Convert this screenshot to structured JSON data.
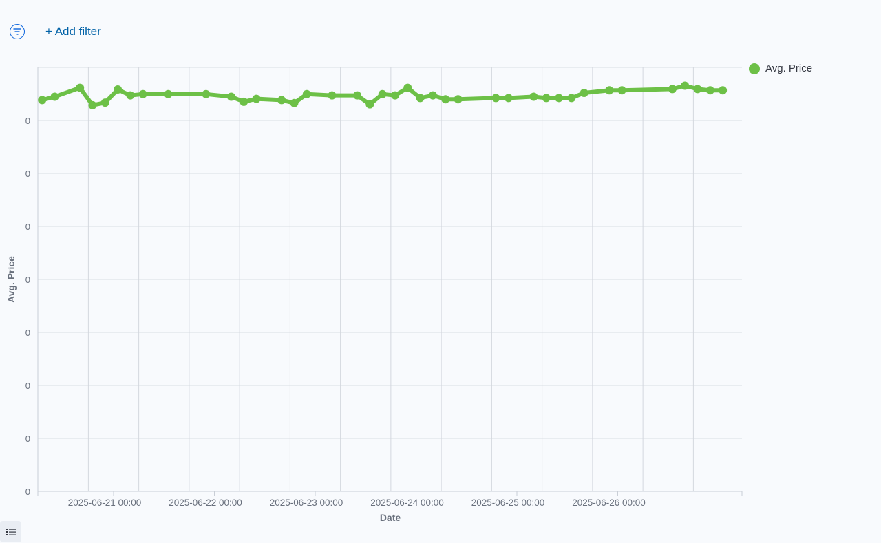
{
  "filter_bar": {
    "add_filter_label": "+ Add filter",
    "filter_icon": "filter-icon"
  },
  "legend_toggle_icon": "list-icon",
  "colors": {
    "series": "#6dc047",
    "grid": "#d9dde3",
    "accent": "#0061a6"
  },
  "chart_data": {
    "type": "line",
    "xlabel": "Date",
    "ylabel": "Avg. Price",
    "x_ticks": [
      "2025-06-21 00:00",
      "2025-06-22 00:00",
      "2025-06-23 00:00",
      "2025-06-24 00:00",
      "2025-06-25 00:00",
      "2025-06-26 00:00"
    ],
    "y_tick_labels": [
      "0",
      "0",
      "0",
      "0",
      "0",
      "0",
      "0",
      "0"
    ],
    "legend_position": "top-right",
    "grid": true,
    "series": [
      {
        "name": "Avg. Price",
        "color": "#6dc047",
        "points": [
          [
            "2025-06-20 07:00",
            0.2073
          ],
          [
            "2025-06-20 10:00",
            0.2081
          ],
          [
            "2025-06-20 16:00",
            0.2102
          ],
          [
            "2025-06-20 19:00",
            0.2061
          ],
          [
            "2025-06-20 22:00",
            0.2067
          ],
          [
            "2025-06-21 01:00",
            0.2098
          ],
          [
            "2025-06-21 04:00",
            0.2084
          ],
          [
            "2025-06-21 07:00",
            0.2087
          ],
          [
            "2025-06-21 13:00",
            0.2087
          ],
          [
            "2025-06-21 22:00",
            0.2087
          ],
          [
            "2025-06-22 04:00",
            0.2081
          ],
          [
            "2025-06-22 07:00",
            0.2069
          ],
          [
            "2025-06-22 10:00",
            0.2076
          ],
          [
            "2025-06-22 16:00",
            0.2073
          ],
          [
            "2025-06-22 19:00",
            0.2066
          ],
          [
            "2025-06-22 22:00",
            0.2087
          ],
          [
            "2025-06-23 04:00",
            0.2084
          ],
          [
            "2025-06-23 10:00",
            0.2084
          ],
          [
            "2025-06-23 13:00",
            0.2063
          ],
          [
            "2025-06-23 16:00",
            0.2087
          ],
          [
            "2025-06-23 19:00",
            0.2084
          ],
          [
            "2025-06-23 22:00",
            0.2102
          ],
          [
            "2025-06-24 01:00",
            0.2078
          ],
          [
            "2025-06-24 04:00",
            0.2084
          ],
          [
            "2025-06-24 07:00",
            0.2075
          ],
          [
            "2025-06-24 10:00",
            0.2075
          ],
          [
            "2025-06-24 19:00",
            0.2078
          ],
          [
            "2025-06-24 22:00",
            0.2078
          ],
          [
            "2025-06-25 04:00",
            0.2081
          ],
          [
            "2025-06-25 07:00",
            0.2078
          ],
          [
            "2025-06-25 10:00",
            0.2078
          ],
          [
            "2025-06-25 13:00",
            0.2078
          ],
          [
            "2025-06-25 16:00",
            0.209
          ],
          [
            "2025-06-25 22:00",
            0.2096
          ],
          [
            "2025-06-26 01:00",
            0.2096
          ],
          [
            "2025-06-26 13:00",
            0.2099
          ],
          [
            "2025-06-26 16:00",
            0.2107
          ],
          [
            "2025-06-26 19:00",
            0.2099
          ],
          [
            "2025-06-26 22:00",
            0.2096
          ],
          [
            "2025-06-27 01:00",
            0.2096
          ]
        ]
      }
    ]
  }
}
